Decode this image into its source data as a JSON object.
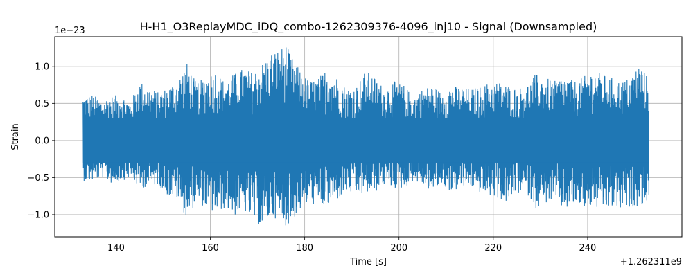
{
  "chart_data": {
    "type": "line",
    "title": "H-H1_O3ReplayMDC_iDQ_combo-1262309376-4096_inj10 - Signal (Downsampled)",
    "xlabel": "Time [s]",
    "ylabel": "Strain",
    "x_offset_label": "+1.262311e9",
    "y_scale_label": "1e−23",
    "xlim": [
      127,
      260
    ],
    "ylim": [
      -1.3,
      1.4
    ],
    "x_ticks": [
      140,
      160,
      180,
      200,
      220,
      240
    ],
    "x_tick_labels": [
      "140",
      "160",
      "180",
      "200",
      "220",
      "240"
    ],
    "y_ticks": [
      -1.0,
      -0.5,
      0.0,
      0.5,
      1.0
    ],
    "y_tick_labels": [
      "−1.0",
      "−0.5",
      "0.0",
      "0.5",
      "1.0"
    ],
    "grid": true,
    "series": [
      {
        "color": "#1f77b4",
        "x_start": 133,
        "x_end": 253,
        "envelope": {
          "x": [
            133,
            135,
            137,
            139,
            141,
            143,
            145,
            147,
            149,
            151,
            153,
            155,
            157,
            159,
            161,
            163,
            165,
            167,
            169,
            171,
            173,
            175,
            176,
            177,
            179,
            181,
            183,
            185,
            187,
            189,
            191,
            193,
            195,
            197,
            199,
            201,
            203,
            205,
            207,
            209,
            211,
            213,
            215,
            217,
            219,
            221,
            223,
            225,
            227,
            229,
            231,
            233,
            235,
            237,
            239,
            241,
            243,
            245,
            247,
            249,
            251,
            253
          ],
          "upper": [
            0.6,
            0.62,
            0.55,
            0.6,
            0.62,
            0.52,
            0.8,
            0.72,
            0.65,
            0.72,
            0.82,
            1.05,
            0.78,
            0.88,
            0.95,
            0.8,
            0.9,
            0.98,
            0.92,
            1.05,
            1.2,
            1.25,
            1.32,
            1.15,
            0.95,
            0.8,
            0.85,
            1.0,
            0.85,
            0.7,
            0.75,
            0.95,
            0.85,
            0.7,
            0.8,
            0.75,
            0.6,
            0.7,
            0.75,
            0.65,
            0.75,
            0.72,
            0.7,
            0.72,
            0.78,
            0.8,
            0.75,
            0.7,
            0.75,
            0.9,
            0.85,
            0.8,
            0.88,
            0.8,
            0.85,
            0.95,
            0.9,
            0.85,
            0.8,
            0.85,
            1.05,
            0.82
          ],
          "lower": [
            -0.55,
            -0.55,
            -0.5,
            -0.58,
            -0.55,
            -0.5,
            -0.65,
            -0.62,
            -0.6,
            -0.75,
            -0.8,
            -1.05,
            -0.85,
            -0.9,
            -1.0,
            -0.92,
            -1.02,
            -0.95,
            -1.08,
            -1.18,
            -1.02,
            -1.1,
            -1.15,
            -1.12,
            -0.95,
            -0.85,
            -0.9,
            -0.9,
            -0.8,
            -0.7,
            -0.75,
            -0.72,
            -0.7,
            -0.6,
            -0.65,
            -0.65,
            -0.55,
            -0.6,
            -0.7,
            -0.6,
            -0.7,
            -0.65,
            -0.62,
            -0.7,
            -0.75,
            -0.78,
            -0.85,
            -0.72,
            -0.7,
            -0.92,
            -0.85,
            -0.82,
            -0.95,
            -0.88,
            -0.92,
            -0.9,
            -0.95,
            -0.92,
            -0.95,
            -0.9,
            -0.88,
            -0.82
          ]
        }
      }
    ]
  }
}
